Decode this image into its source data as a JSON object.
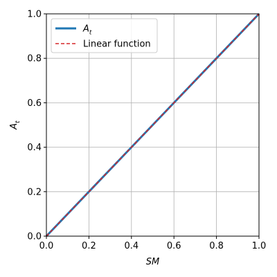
{
  "chart_data": {
    "type": "line",
    "xlabel": "SM",
    "ylabel": "A",
    "ylabel_sub": "t",
    "xlim": [
      0.0,
      1.0
    ],
    "ylim": [
      0.0,
      1.0
    ],
    "xticks": [
      0.0,
      0.2,
      0.4,
      0.6,
      0.8,
      1.0
    ],
    "yticks": [
      0.0,
      0.2,
      0.4,
      0.6,
      0.8,
      1.0
    ],
    "xtick_labels": [
      "0.0",
      "0.2",
      "0.4",
      "0.6",
      "0.8",
      "1.0"
    ],
    "ytick_labels": [
      "0.0",
      "0.2",
      "0.4",
      "0.6",
      "0.8",
      "1.0"
    ],
    "grid": true,
    "legend_position": "top-left",
    "series": [
      {
        "name": "A",
        "name_sub": "t",
        "style": "solid",
        "color": "#1f77b4",
        "x": [
          0.0,
          0.2,
          0.4,
          0.6,
          0.8,
          1.0
        ],
        "y": [
          0.0,
          0.2,
          0.4,
          0.6,
          0.8,
          1.0
        ]
      },
      {
        "name": "Linear function",
        "style": "dashed",
        "color": "#d62728",
        "x": [
          0.0,
          1.0
        ],
        "y": [
          0.0,
          1.0
        ]
      }
    ]
  }
}
